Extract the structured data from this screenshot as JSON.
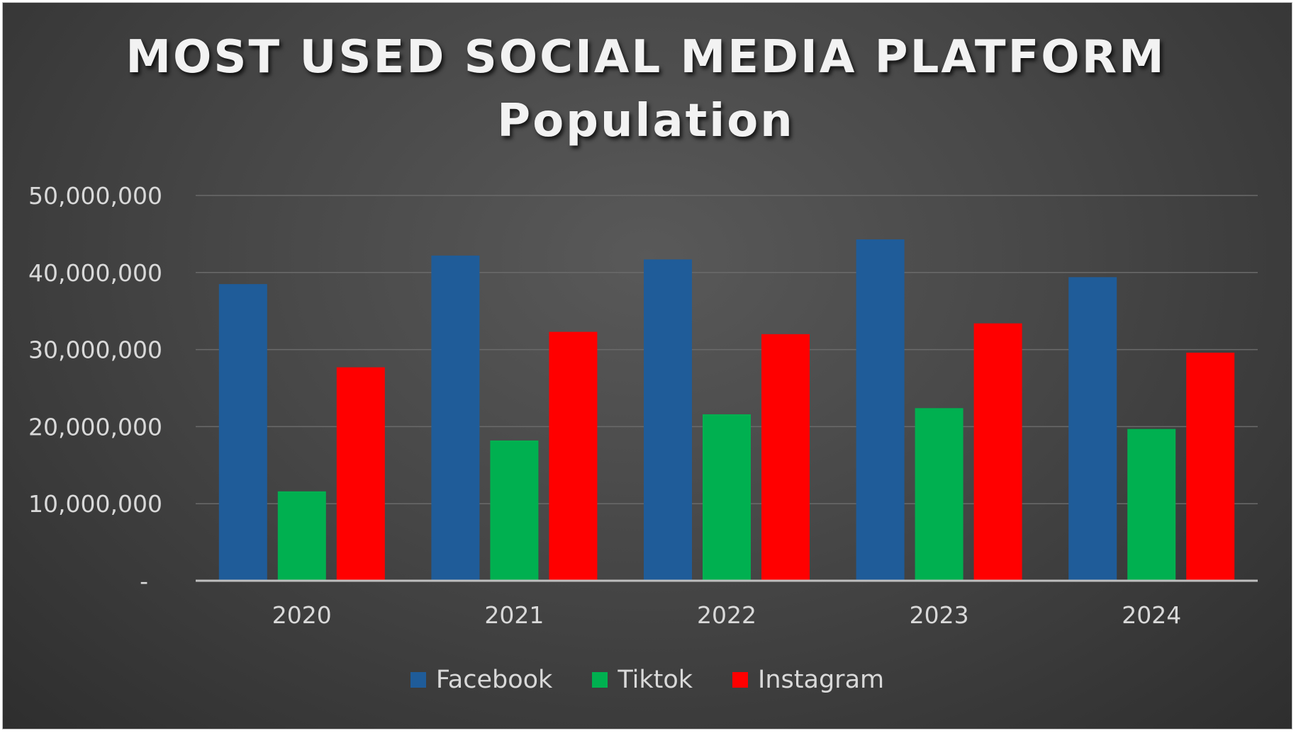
{
  "chart_data": {
    "type": "bar",
    "title": "MOST USED SOCIAL MEDIA PLATFORM",
    "subtitle": "Population",
    "xlabel": "",
    "ylabel": "",
    "categories": [
      "2020",
      "2021",
      "2022",
      "2023",
      "2024"
    ],
    "series": [
      {
        "name": "Facebook",
        "color": "#1f5c99",
        "values": [
          38500000,
          42200000,
          41700000,
          44300000,
          39400000
        ]
      },
      {
        "name": "Tiktok",
        "color": "#00b050",
        "values": [
          11600000,
          18200000,
          21600000,
          22400000,
          19700000
        ]
      },
      {
        "name": "Instagram",
        "color": "#ff0000",
        "values": [
          27700000,
          32300000,
          32000000,
          33400000,
          29600000
        ]
      }
    ],
    "ylim": [
      0,
      50000000
    ],
    "yticks": [
      0,
      10000000,
      20000000,
      30000000,
      40000000,
      50000000
    ],
    "ytick_labels": [
      "-",
      "10,000,000",
      "20,000,000",
      "30,000,000",
      "40,000,000",
      "50,000,000"
    ],
    "grid": true,
    "legend_position": "bottom",
    "background": "#474747"
  }
}
